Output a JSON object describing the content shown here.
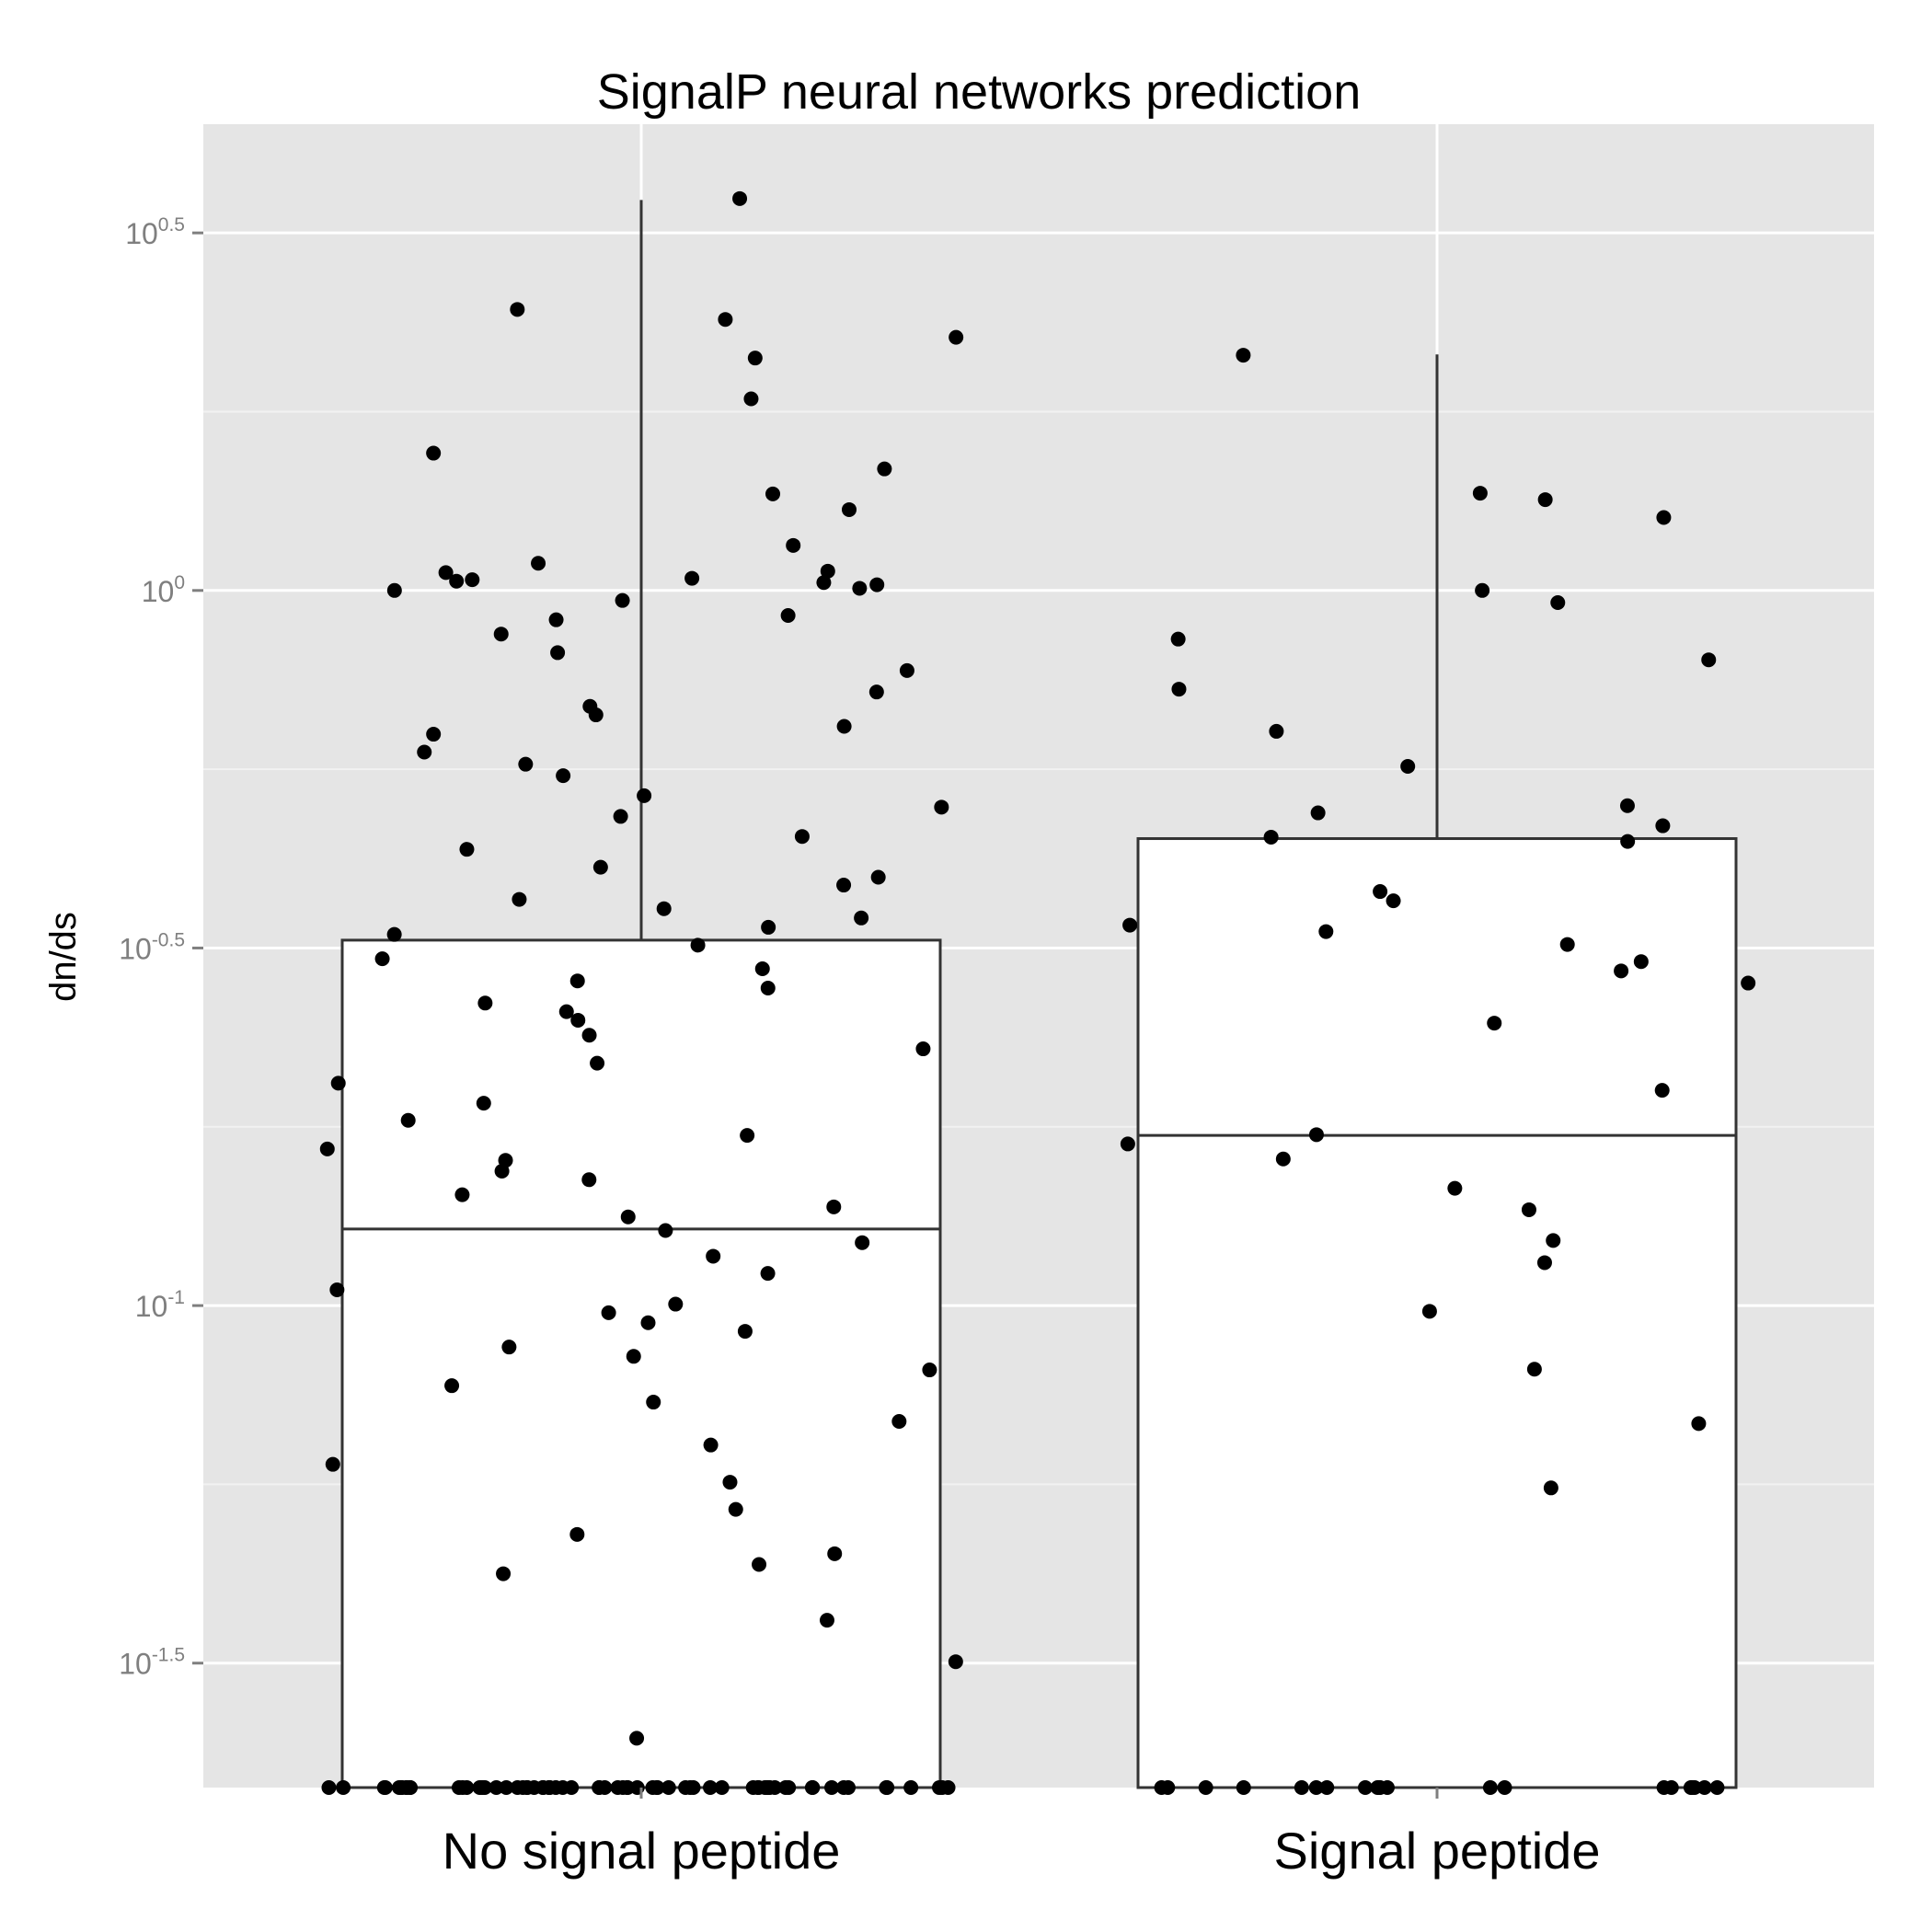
{
  "chart_data": {
    "type": "boxplot",
    "title": "SignalP neural networks prediction",
    "xlabel": "",
    "ylabel": "dn/ds",
    "y_scale": "log10",
    "ylim_log10": [
      -1.674,
      0.652
    ],
    "categories": [
      "No signal peptide",
      "Signal peptide"
    ],
    "y_ticks": [
      {
        "log10": 0.5,
        "base": "10",
        "exp": "0.5"
      },
      {
        "log10": 0.0,
        "base": "10",
        "exp": "0"
      },
      {
        "log10": -0.5,
        "base": "10",
        "exp": "-0.5"
      },
      {
        "log10": -1.0,
        "base": "10",
        "exp": "-1"
      },
      {
        "log10": -1.5,
        "base": "10",
        "exp": "-1.5"
      }
    ],
    "grid": true,
    "legend": "none",
    "colors": {
      "panel": "#e5e5e5",
      "grid": "#ffffff",
      "points": "#000000",
      "box_fill": "#ffffff",
      "box_stroke": "#333333",
      "tick_text": "#7f7f7f"
    },
    "boxes": [
      {
        "name": "No signal peptide",
        "lower": -1.674,
        "q1": -1.674,
        "median": -0.893,
        "q3": -0.489,
        "upper": 0.546,
        "upper_whisker_from": -0.489
      },
      {
        "name": "Signal peptide",
        "lower": -1.674,
        "q1": -1.674,
        "median": -0.762,
        "q3": -0.347,
        "upper": 0.33,
        "upper_whisker_from": -0.347
      }
    ],
    "points": [
      {
        "group": 0,
        "values": [
          0.548,
          0.393,
          0.379,
          0.354,
          0.325,
          0.268,
          0.192,
          0.17,
          0.135,
          0.113,
          0.063,
          0.038,
          0.027,
          0.025,
          0.017,
          0.015,
          0.013,
          0.011,
          0.008,
          0.003,
          0.0,
          -0.014,
          -0.035,
          -0.041,
          -0.061,
          -0.087,
          -0.112,
          -0.142,
          -0.162,
          -0.174,
          -0.19,
          -0.201,
          -0.226,
          -0.243,
          -0.259,
          -0.287,
          -0.303,
          -0.316,
          -0.344,
          -0.362,
          -0.387,
          -0.401,
          -0.412,
          -0.432,
          -0.445,
          -0.458,
          -0.471,
          -0.481,
          -0.496,
          -0.515,
          -0.529,
          -0.546,
          -0.556,
          -0.577,
          -0.589,
          -0.601,
          -0.622,
          -0.641,
          -0.661,
          -0.689,
          -0.717,
          -0.741,
          -0.762,
          -0.781,
          -0.797,
          -0.812,
          -0.824,
          -0.845,
          -0.862,
          -0.876,
          -0.895,
          -0.912,
          -0.931,
          -0.955,
          -0.978,
          -0.998,
          -1.01,
          -1.024,
          -1.036,
          -1.058,
          -1.071,
          -1.09,
          -1.112,
          -1.135,
          -1.162,
          -1.195,
          -1.222,
          -1.247,
          -1.285,
          -1.32,
          -1.347,
          -1.362,
          -1.375,
          -1.44,
          -1.498,
          -1.605
        ]
      },
      {
        "group": 1,
        "values": [
          0.329,
          0.136,
          0.127,
          0.102,
          0.0,
          -0.017,
          -0.068,
          -0.097,
          -0.138,
          -0.197,
          -0.246,
          -0.301,
          -0.311,
          -0.329,
          -0.345,
          -0.351,
          -0.421,
          -0.434,
          -0.468,
          -0.477,
          -0.495,
          -0.519,
          -0.532,
          -0.549,
          -0.605,
          -0.699,
          -0.761,
          -0.774,
          -0.795,
          -0.836,
          -0.866,
          -0.909,
          -0.94,
          -1.008,
          -1.089,
          -1.165,
          -1.255,
          -1.674
        ]
      }
    ]
  }
}
